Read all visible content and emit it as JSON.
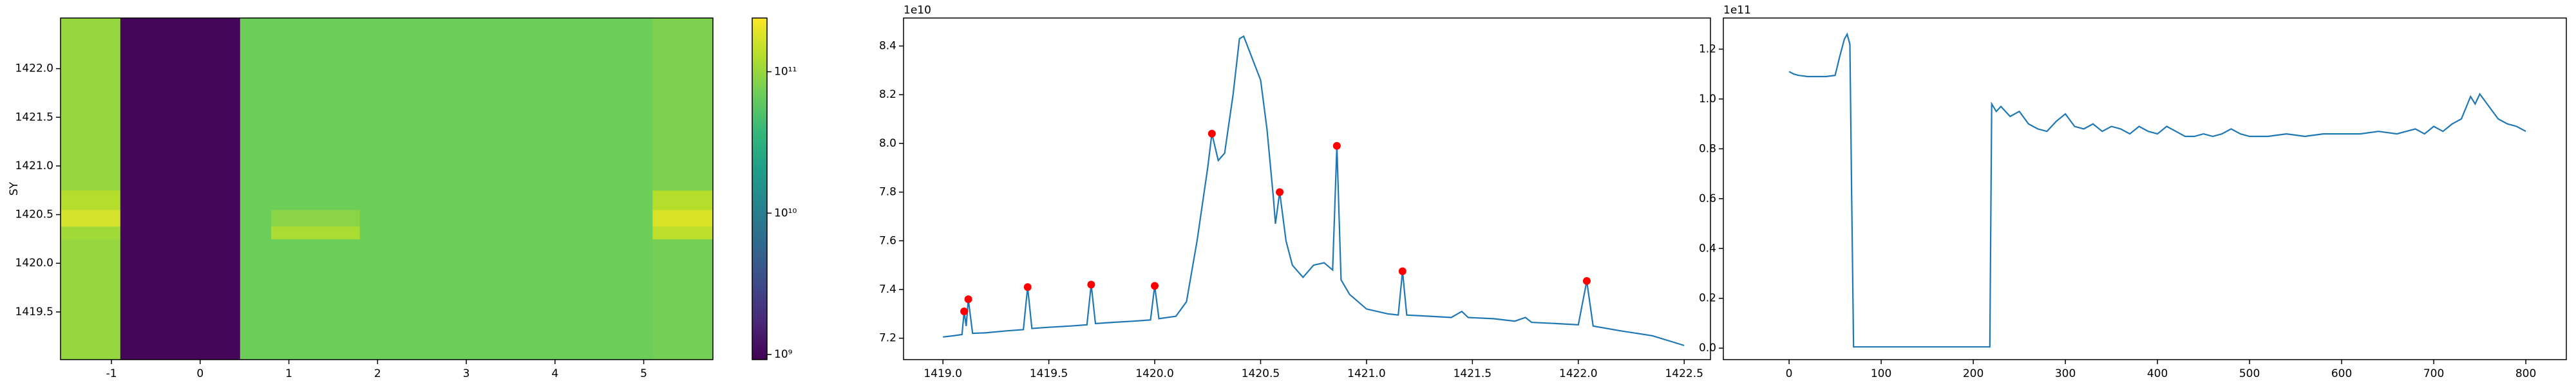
{
  "chart_data": [
    {
      "type": "heatmap",
      "y_label": "SY",
      "x_edges": [
        -1.574,
        -0.9,
        0.45,
        0.8,
        1.8,
        5.1,
        5.78
      ],
      "y_edges": [
        1419.01,
        1420.25,
        1420.38,
        1420.55,
        1420.75,
        1422.52
      ],
      "z": [
        [
          100000000000,
          1000000000,
          70000000000,
          70000000000,
          70000000000,
          75000000000
        ],
        [
          110000000000,
          1000000000,
          70000000000,
          120000000000,
          70000000000,
          140000000000
        ],
        [
          170000000000,
          1000000000,
          70000000000,
          90000000000,
          70000000000,
          180000000000
        ],
        [
          130000000000,
          1000000000,
          70000000000,
          70000000000,
          70000000000,
          130000000000
        ],
        [
          100000000000,
          1000000000,
          70000000000,
          70000000000,
          70000000000,
          80000000000
        ]
      ],
      "xlim": [
        -1.574,
        5.78
      ],
      "xticks": [
        -1,
        0,
        1,
        2,
        3,
        4,
        5
      ],
      "ylim": [
        1419.01,
        1422.52
      ],
      "yticks": [
        1419.5,
        {
          "value": 1420,
          "label": "1420.0"
        },
        1420.5,
        {
          "value": 1421,
          "label": "1421.0"
        },
        1421.5,
        {
          "value": 1422,
          "label": "1422.0"
        }
      ],
      "colormap": "viridis",
      "zscale": "log",
      "zlim": [
        920000000,
        240000000000
      ],
      "zticks": [
        {
          "value": 1000000000,
          "label": "10⁹"
        },
        {
          "value": 10000000000,
          "label": "10¹⁰"
        },
        {
          "value": 100000000000,
          "label": "10¹¹"
        }
      ]
    },
    {
      "type": "line",
      "offset_label": "1e10",
      "xlim": [
        1418.814,
        1422.624
      ],
      "xticks": [
        {
          "value": 1419,
          "label": "1419.0"
        },
        1419.5,
        {
          "value": 1420,
          "label": "1420.0"
        },
        1420.5,
        {
          "value": 1421,
          "label": "1421.0"
        },
        1421.5,
        {
          "value": 1422,
          "label": "1422.0"
        },
        1422.5
      ],
      "ylim": [
        7.112,
        8.515
      ],
      "yticks": [
        7.2,
        7.4,
        7.6,
        7.8,
        {
          "value": 8,
          "label": "8.0"
        },
        8.2,
        8.4
      ],
      "series": [
        {
          "kind": "line",
          "color": "#1f77b4",
          "x": [
            1419.0,
            1419.05,
            1419.09,
            1419.1,
            1419.11,
            1419.12,
            1419.14,
            1419.2,
            1419.3,
            1419.38,
            1419.4,
            1419.42,
            1419.5,
            1419.6,
            1419.68,
            1419.7,
            1419.72,
            1419.8,
            1419.9,
            1419.98,
            1420.0,
            1420.02,
            1420.1,
            1420.15,
            1420.2,
            1420.25,
            1420.27,
            1420.3,
            1420.33,
            1420.37,
            1420.4,
            1420.42,
            1420.46,
            1420.5,
            1420.53,
            1420.56,
            1420.57,
            1420.59,
            1420.62,
            1420.65,
            1420.7,
            1420.75,
            1420.8,
            1420.84,
            1420.86,
            1420.88,
            1420.92,
            1421.0,
            1421.1,
            1421.15,
            1421.17,
            1421.19,
            1421.3,
            1421.4,
            1421.45,
            1421.48,
            1421.6,
            1421.7,
            1421.75,
            1421.78,
            1421.9,
            1422.0,
            1422.04,
            1422.07,
            1422.2,
            1422.35,
            1422.5
          ],
          "values": [
            7.205,
            7.21,
            7.215,
            7.31,
            7.25,
            7.36,
            7.22,
            7.222,
            7.23,
            7.235,
            7.41,
            7.24,
            7.245,
            7.25,
            7.255,
            7.42,
            7.26,
            7.265,
            7.27,
            7.275,
            7.415,
            7.28,
            7.29,
            7.35,
            7.6,
            7.9,
            8.04,
            7.93,
            7.96,
            8.2,
            8.43,
            8.44,
            8.35,
            8.26,
            8.06,
            7.78,
            7.67,
            7.8,
            7.6,
            7.5,
            7.45,
            7.5,
            7.51,
            7.48,
            7.99,
            7.44,
            7.38,
            7.32,
            7.3,
            7.295,
            7.475,
            7.295,
            7.29,
            7.285,
            7.31,
            7.285,
            7.28,
            7.27,
            7.285,
            7.265,
            7.26,
            7.255,
            7.435,
            7.25,
            7.23,
            7.21,
            7.17
          ]
        },
        {
          "kind": "scatter",
          "color": "red",
          "x": [
            1419.1,
            1419.12,
            1419.4,
            1419.7,
            1420.0,
            1420.27,
            1420.59,
            1420.86,
            1421.17,
            1422.04
          ],
          "values": [
            7.31,
            7.36,
            7.41,
            7.42,
            7.415,
            8.04,
            7.8,
            7.99,
            7.475,
            7.435
          ]
        }
      ]
    },
    {
      "type": "line",
      "offset_label": "1e11",
      "xlim": [
        -71.4,
        844
      ],
      "xticks": [
        0,
        100,
        200,
        300,
        400,
        500,
        600,
        700,
        800
      ],
      "ylim": [
        -0.046,
        1.325
      ],
      "yticks": [
        {
          "value": 0,
          "label": "0.0"
        },
        0.2,
        0.4,
        0.6,
        0.8,
        {
          "value": 1,
          "label": "1.0"
        },
        1.2
      ],
      "series": [
        {
          "kind": "line",
          "color": "#1f77b4",
          "x": [
            0,
            5,
            10,
            20,
            30,
            40,
            50,
            55,
            60,
            63,
            66,
            68,
            70,
            100,
            150,
            200,
            218,
            220,
            225,
            230,
            240,
            250,
            260,
            270,
            280,
            290,
            300,
            310,
            320,
            330,
            340,
            350,
            360,
            370,
            380,
            390,
            400,
            410,
            420,
            430,
            440,
            450,
            460,
            470,
            480,
            490,
            500,
            520,
            540,
            560,
            580,
            600,
            620,
            640,
            660,
            680,
            690,
            700,
            710,
            720,
            730,
            740,
            745,
            750,
            760,
            770,
            780,
            790,
            800
          ],
          "values": [
            1.11,
            1.1,
            1.095,
            1.09,
            1.09,
            1.09,
            1.095,
            1.17,
            1.24,
            1.26,
            1.22,
            0.6,
            0.005,
            0.005,
            0.005,
            0.005,
            0.005,
            0.98,
            0.95,
            0.97,
            0.93,
            0.95,
            0.9,
            0.88,
            0.87,
            0.91,
            0.94,
            0.89,
            0.88,
            0.9,
            0.87,
            0.89,
            0.88,
            0.86,
            0.89,
            0.87,
            0.86,
            0.89,
            0.87,
            0.85,
            0.85,
            0.86,
            0.85,
            0.86,
            0.88,
            0.86,
            0.85,
            0.85,
            0.86,
            0.85,
            0.86,
            0.86,
            0.86,
            0.87,
            0.86,
            0.88,
            0.86,
            0.89,
            0.87,
            0.9,
            0.92,
            1.01,
            0.98,
            1.02,
            0.97,
            0.92,
            0.9,
            0.89,
            0.87
          ]
        }
      ]
    }
  ]
}
